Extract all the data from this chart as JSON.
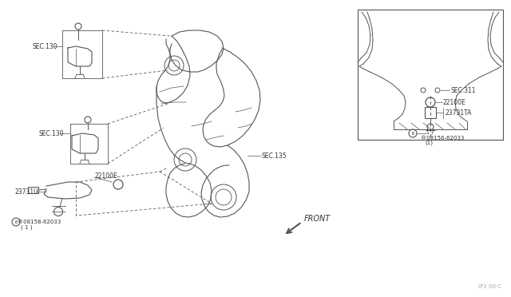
{
  "bg_color": "#ffffff",
  "line_color": "#555555",
  "label_color": "#333333",
  "light_color": "#aaaaaa",
  "labels": {
    "sec130_top": "SEC.130",
    "sec130_mid": "SEC.130",
    "sec135": "SEC.135",
    "sec311": "SEC.311",
    "22100E_main": "22100E",
    "23731U": "23731U",
    "bolt_main_line1": "®08158-62033",
    "bolt_main_line2": "( 1 )",
    "22100E_inset": "22100E",
    "23731TA": "23731TA",
    "bolt_inset_line1": "®08156-62033",
    "bolt_inset_line2": "(1)",
    "front": "FRONT",
    "part_code": ".IP2 00·C"
  }
}
